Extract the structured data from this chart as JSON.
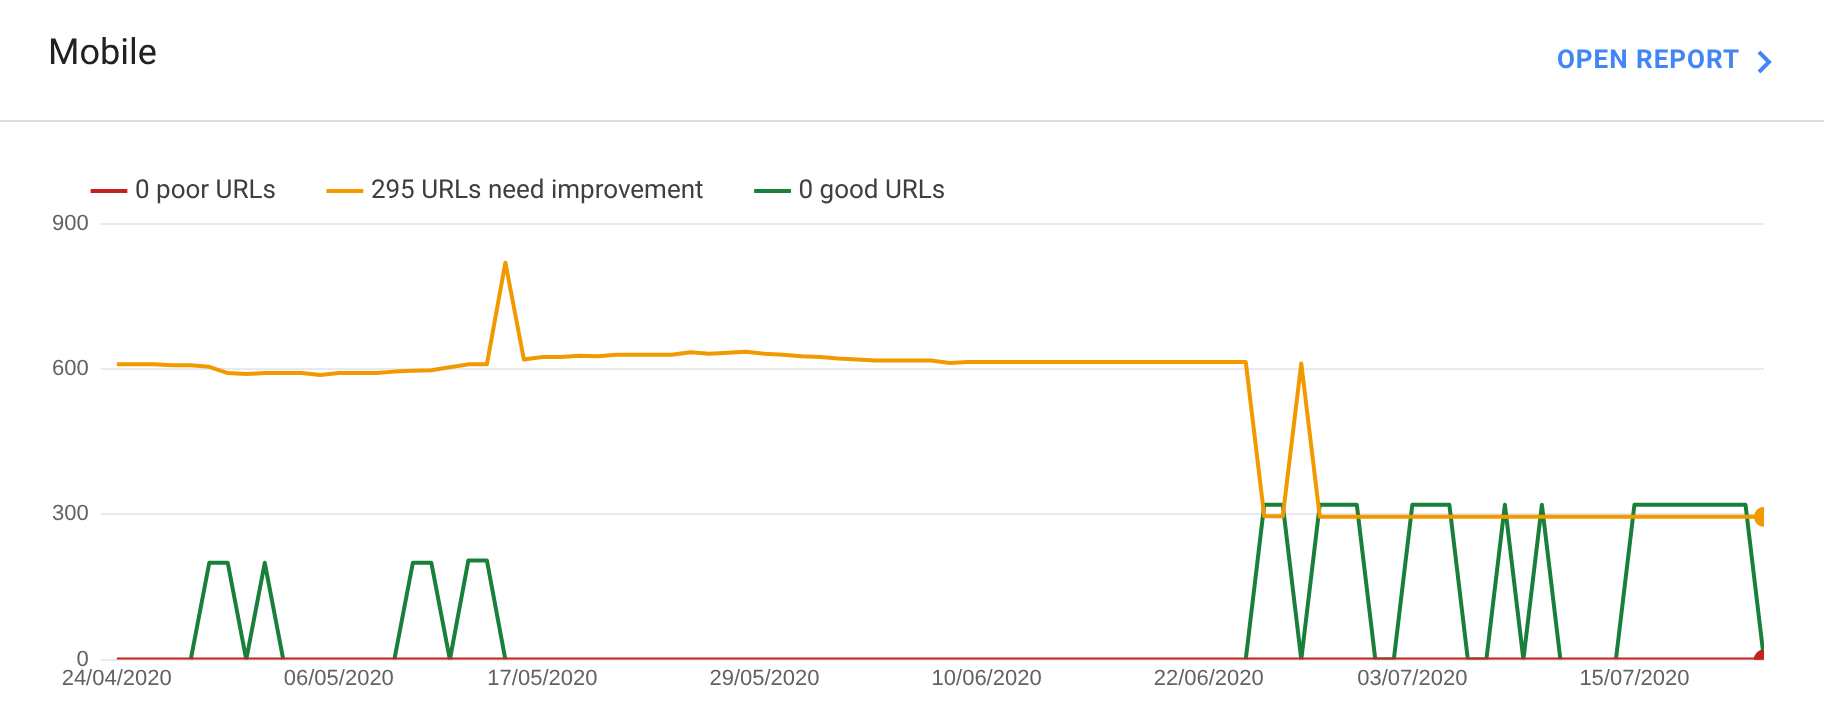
{
  "chart_data": {
    "type": "line",
    "title": "Mobile",
    "annotations": [
      "OPEN REPORT"
    ],
    "legend": "top left",
    "grid": "y",
    "x": [
      "2020-04-24",
      "2020-04-25",
      "2020-04-26",
      "2020-04-27",
      "2020-04-28",
      "2020-04-29",
      "2020-04-30",
      "2020-05-01",
      "2020-05-02",
      "2020-05-03",
      "2020-05-04",
      "2020-05-05",
      "2020-05-06",
      "2020-05-07",
      "2020-05-08",
      "2020-05-09",
      "2020-05-10",
      "2020-05-11",
      "2020-05-12",
      "2020-05-13",
      "2020-05-14",
      "2020-05-15",
      "2020-05-16",
      "2020-05-17",
      "2020-05-18",
      "2020-05-19",
      "2020-05-20",
      "2020-05-21",
      "2020-05-22",
      "2020-05-23",
      "2020-05-24",
      "2020-05-25",
      "2020-05-26",
      "2020-05-27",
      "2020-05-28",
      "2020-05-29",
      "2020-05-30",
      "2020-05-31",
      "2020-06-01",
      "2020-06-02",
      "2020-06-03",
      "2020-06-04",
      "2020-06-05",
      "2020-06-06",
      "2020-06-07",
      "2020-06-08",
      "2020-06-09",
      "2020-06-10",
      "2020-06-11",
      "2020-06-12",
      "2020-06-13",
      "2020-06-14",
      "2020-06-15",
      "2020-06-16",
      "2020-06-17",
      "2020-06-18",
      "2020-06-19",
      "2020-06-20",
      "2020-06-21",
      "2020-06-22",
      "2020-06-23",
      "2020-06-24",
      "2020-06-25",
      "2020-06-26",
      "2020-06-27",
      "2020-06-28",
      "2020-06-29",
      "2020-06-30",
      "2020-07-01",
      "2020-07-02",
      "2020-07-03",
      "2020-07-04",
      "2020-07-05",
      "2020-07-06",
      "2020-07-07",
      "2020-07-08",
      "2020-07-09",
      "2020-07-10",
      "2020-07-11",
      "2020-07-12",
      "2020-07-13",
      "2020-07-14",
      "2020-07-15",
      "2020-07-16",
      "2020-07-17",
      "2020-07-18",
      "2020-07-19",
      "2020-07-20",
      "2020-07-21",
      "2020-07-22"
    ],
    "xlim": [
      "2020-04-24",
      "2020-07-22"
    ],
    "xticks": [
      {
        "value": "2020-04-24",
        "label": "24/04/2020"
      },
      {
        "value": "2020-05-06",
        "label": "06/05/2020"
      },
      {
        "value": "2020-05-17",
        "label": "17/05/2020"
      },
      {
        "value": "2020-05-29",
        "label": "29/05/2020"
      },
      {
        "value": "2020-06-10",
        "label": "10/06/2020"
      },
      {
        "value": "2020-06-22",
        "label": "22/06/2020"
      },
      {
        "value": "2020-07-03",
        "label": "03/07/2020"
      },
      {
        "value": "2020-07-15",
        "label": "15/07/2020"
      }
    ],
    "ylim": [
      0,
      900
    ],
    "yticks": [
      0,
      300,
      600,
      900
    ],
    "series": [
      {
        "name": "0 poor URLs",
        "color": "#c5221f",
        "values": [
          0,
          0,
          0,
          0,
          0,
          0,
          0,
          0,
          0,
          0,
          0,
          0,
          0,
          0,
          0,
          0,
          0,
          0,
          0,
          0,
          0,
          0,
          0,
          0,
          0,
          0,
          0,
          0,
          0,
          0,
          0,
          0,
          0,
          0,
          0,
          0,
          0,
          0,
          0,
          0,
          0,
          0,
          0,
          0,
          0,
          0,
          0,
          0,
          0,
          0,
          0,
          0,
          0,
          0,
          0,
          0,
          0,
          0,
          0,
          0,
          0,
          0,
          0,
          0,
          0,
          0,
          0,
          0,
          0,
          0,
          0,
          0,
          0,
          0,
          0,
          0,
          0,
          0,
          0,
          0,
          0,
          0,
          0,
          0,
          0,
          0,
          0,
          0,
          0,
          0
        ]
      },
      {
        "name": "295 URLs need improvement",
        "color": "#f29900",
        "values": [
          610,
          610,
          610,
          608,
          608,
          605,
          592,
          590,
          592,
          592,
          592,
          588,
          592,
          592,
          592,
          595,
          597,
          598,
          604,
          610,
          610,
          820,
          620,
          625,
          625,
          628,
          627,
          630,
          630,
          630,
          630,
          635,
          632,
          634,
          636,
          632,
          630,
          627,
          625,
          622,
          620,
          618,
          618,
          618,
          618,
          613,
          615,
          615,
          615,
          615,
          615,
          615,
          615,
          615,
          615,
          615,
          615,
          615,
          615,
          615,
          615,
          615,
          296,
          296,
          612,
          295,
          295,
          295,
          295,
          295,
          295,
          295,
          295,
          295,
          295,
          295,
          295,
          295,
          295,
          295,
          295,
          295,
          295,
          295,
          295,
          295,
          295,
          295,
          295,
          295
        ]
      },
      {
        "name": "0 good URLs",
        "color": "#188038",
        "values": [
          null,
          null,
          null,
          null,
          0,
          200,
          200,
          0,
          200,
          0,
          null,
          null,
          null,
          null,
          null,
          0,
          200,
          200,
          0,
          205,
          205,
          0,
          null,
          null,
          null,
          null,
          null,
          null,
          null,
          null,
          null,
          null,
          null,
          null,
          null,
          null,
          null,
          null,
          null,
          null,
          null,
          null,
          null,
          null,
          null,
          null,
          null,
          null,
          null,
          null,
          null,
          null,
          null,
          null,
          null,
          null,
          null,
          null,
          null,
          null,
          null,
          0,
          320,
          320,
          0,
          320,
          320,
          320,
          0,
          0,
          320,
          320,
          320,
          0,
          0,
          320,
          0,
          320,
          0,
          null,
          null,
          0,
          320,
          320,
          320,
          320,
          320,
          320,
          320,
          0
        ]
      }
    ]
  }
}
